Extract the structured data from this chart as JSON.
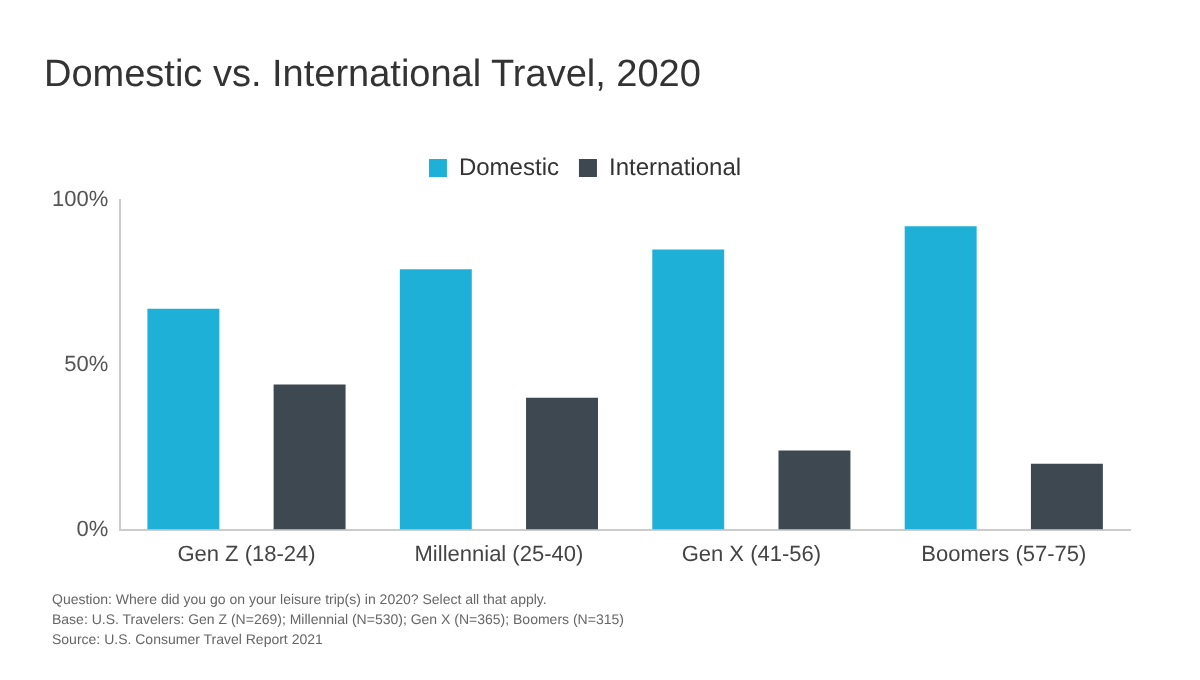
{
  "chart_data": {
    "type": "bar",
    "title": "Domestic vs. International Travel, 2020",
    "categories": [
      "Gen Z (18-24)",
      "Millennial (25-40)",
      "Gen X (41-56)",
      "Boomers (57-75)"
    ],
    "series": [
      {
        "name": "Domestic",
        "color": "#1fb0d8",
        "values": [
          67,
          79,
          85,
          92
        ]
      },
      {
        "name": "International",
        "color": "#3d4850",
        "values": [
          44,
          40,
          24,
          20
        ]
      }
    ],
    "ylim": [
      0,
      100
    ],
    "yticks": [
      {
        "value": 0,
        "label": "0%"
      },
      {
        "value": 50,
        "label": "50%"
      },
      {
        "value": 100,
        "label": "100%"
      }
    ],
    "grid": false,
    "legend": "top",
    "annotations": [
      "Question: Where did you go on your leisure trip(s) in 2020? Select all that apply.",
      "Base: U.S. Travelers: Gen Z (N=269); Millennial (N=530); Gen X (N=365); Boomers (N=315)",
      "Source: U.S. Consumer Travel Report 2021"
    ]
  }
}
